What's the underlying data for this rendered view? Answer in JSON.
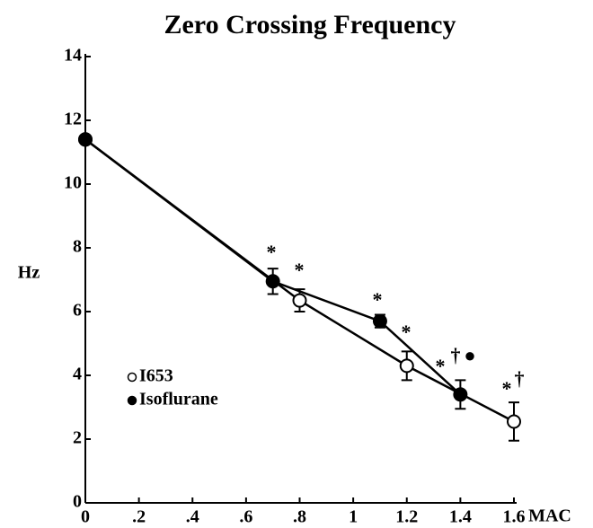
{
  "chart_data": {
    "type": "line",
    "title": "Zero Crossing Frequency",
    "ylabel": "Hz",
    "xlabel": "MAC",
    "xlim": [
      0,
      1.6
    ],
    "xticks": [
      0,
      {
        "value": 0.2,
        "label": ".2"
      },
      {
        "value": 0.4,
        "label": ".4"
      },
      {
        "value": 0.6,
        "label": ".6"
      },
      {
        "value": 0.8,
        "label": ".8"
      },
      1,
      1.2,
      1.4,
      1.6
    ],
    "ylim": [
      0,
      14
    ],
    "yticks": [
      0,
      2,
      4,
      6,
      8,
      10,
      12,
      14
    ],
    "grid": false,
    "legend": "lower left",
    "series": [
      {
        "name": "I653",
        "color": "#000000",
        "marker": "open",
        "x": [
          0,
          0.8,
          1.2,
          1.6
        ],
        "values": [
          11.4,
          6.35,
          4.3,
          2.55
        ],
        "errors": [
          null,
          0.35,
          0.45,
          0.6
        ]
      },
      {
        "name": "Isoflurane",
        "color": "#000000",
        "marker": "filled",
        "x": [
          0,
          0.7,
          1.1,
          1.4
        ],
        "values": [
          11.4,
          6.95,
          5.7,
          3.4
        ],
        "errors": [
          null,
          0.4,
          0.2,
          0.45
        ]
      }
    ],
    "annotations": [
      "*",
      "*",
      "*",
      "*",
      "*",
      "†",
      "●",
      "*",
      "†"
    ]
  }
}
